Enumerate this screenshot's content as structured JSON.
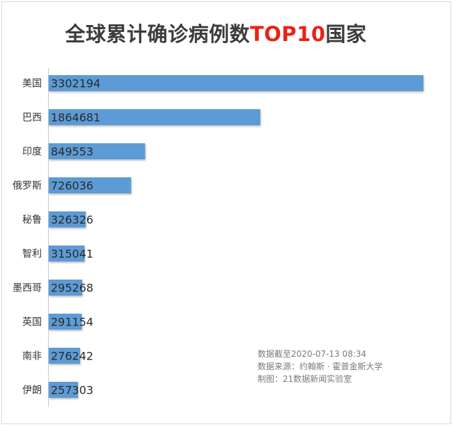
{
  "chart_data": {
    "type": "bar",
    "orientation": "horizontal",
    "title": "全球累计确诊病例数TOP10国家",
    "title_main": "全球累计确诊病例数",
    "title_accent": "TOP10",
    "title_tail": "国家",
    "categories": [
      "美国",
      "巴西",
      "印度",
      "俄罗斯",
      "秘鲁",
      "智利",
      "墨西哥",
      "英国",
      "南非",
      "伊朗"
    ],
    "values": [
      3302194,
      1864681,
      849553,
      726036,
      326326,
      315041,
      295268,
      291154,
      276242,
      257303
    ],
    "xlim": [
      0,
      3302194
    ],
    "grid": false,
    "legend": "none",
    "bar_color": "#5b9bd5",
    "title_color": "#3c3c3c",
    "accent_color": "#e8231a"
  },
  "notes": {
    "date": "数据截至2020-07-13 08:34",
    "source": "数据来源：约翰斯 · 霍普金斯大学",
    "maker": "制图：21数据新闻实验室"
  }
}
